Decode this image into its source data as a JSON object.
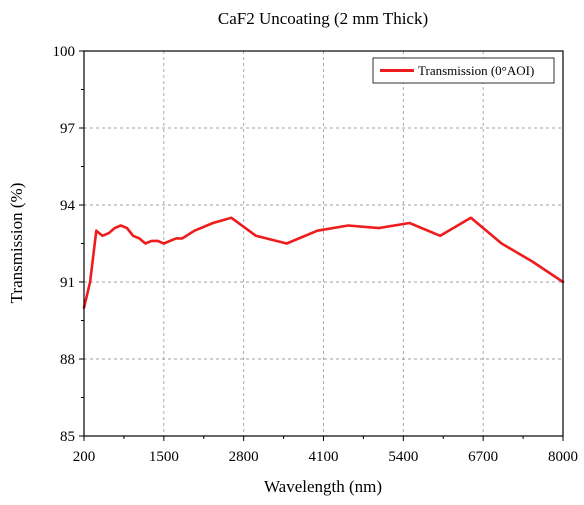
{
  "chart_data": {
    "type": "line",
    "title": "CaF2 Uncoating (2 mm  Thick)",
    "xlabel": "Wavelength (nm)",
    "ylabel": "Transmission (%)",
    "xlim": [
      200,
      8000
    ],
    "ylim": [
      85,
      100
    ],
    "xticks": [
      200,
      1500,
      2800,
      4100,
      5400,
      6700,
      8000
    ],
    "yticks": [
      85,
      88,
      91,
      94,
      97,
      100
    ],
    "grid": true,
    "legend_position": "top-right",
    "series": [
      {
        "name": "Transmission (0°AOI)",
        "color": "#ee1c1c",
        "x": [
          200,
          300,
          400,
          500,
          600,
          700,
          800,
          900,
          1000,
          1100,
          1200,
          1300,
          1400,
          1500,
          1600,
          1700,
          1800,
          2000,
          2300,
          2600,
          3000,
          3500,
          4000,
          4500,
          5000,
          5500,
          6000,
          6500,
          7000,
          7500,
          8000
        ],
        "y": [
          90.0,
          91.0,
          93.0,
          92.8,
          92.9,
          93.1,
          93.2,
          93.1,
          92.8,
          92.7,
          92.5,
          92.6,
          92.6,
          92.5,
          92.6,
          92.7,
          92.7,
          93.0,
          93.3,
          93.5,
          92.8,
          92.5,
          93.0,
          93.2,
          93.1,
          93.3,
          92.8,
          93.5,
          92.5,
          91.8,
          91.0
        ]
      }
    ]
  }
}
